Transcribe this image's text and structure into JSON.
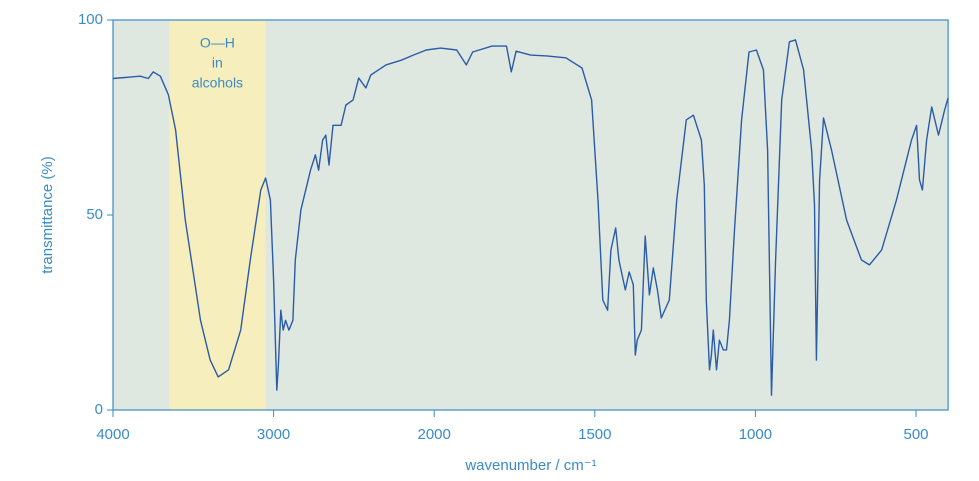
{
  "chart_data": {
    "type": "line",
    "y_label": "transmittance (%)",
    "x_label": "wavenumber / cm⁻¹",
    "xlim": [
      4000,
      400
    ],
    "ylim": [
      0,
      100
    ],
    "xticks": [
      4000,
      3000,
      2000,
      1500,
      1000,
      500
    ],
    "yticks": [
      0,
      50,
      100
    ],
    "color": "#2b5ca6",
    "background": "#dfe7e1",
    "annotation": {
      "lines": [
        "O—H",
        "in",
        "alcohols"
      ],
      "x_range": [
        3650,
        3050
      ],
      "color": "#f6eebd"
    },
    "x": [
      4000,
      3830,
      3780,
      3750,
      3705,
      3655,
      3610,
      3550,
      3455,
      3395,
      3345,
      3280,
      3205,
      3145,
      3080,
      3050,
      3020,
      3000,
      2980,
      2970,
      2955,
      2940,
      2925,
      2905,
      2880,
      2865,
      2830,
      2770,
      2740,
      2720,
      2695,
      2675,
      2655,
      2630,
      2580,
      2550,
      2505,
      2470,
      2425,
      2395,
      2300,
      2205,
      2130,
      2050,
      1980,
      1930,
      1900,
      1880,
      1820,
      1775,
      1760,
      1745,
      1700,
      1650,
      1590,
      1540,
      1510,
      1490,
      1475,
      1460,
      1450,
      1435,
      1425,
      1405,
      1393,
      1380,
      1374,
      1368,
      1355,
      1343,
      1330,
      1318,
      1305,
      1293,
      1268,
      1245,
      1215,
      1193,
      1168,
      1159,
      1153,
      1143,
      1137,
      1131,
      1121,
      1112,
      1100,
      1090,
      1081,
      1065,
      1043,
      1020,
      997,
      975,
      962,
      950,
      937,
      918,
      894,
      875,
      850,
      825,
      816,
      810,
      800,
      788,
      763,
      716,
      670,
      645,
      607,
      561,
      514,
      498,
      489,
      480,
      467,
      451,
      430,
      411,
      400
    ],
    "values": [
      85,
      85.6,
      85,
      86.7,
      85.6,
      80.8,
      71.8,
      48.7,
      23,
      12.8,
      8.5,
      10.3,
      20.5,
      38.5,
      56.4,
      59.5,
      53.8,
      33.3,
      5.1,
      11.5,
      25.6,
      20.5,
      23,
      20.5,
      23,
      38.5,
      51.3,
      61.5,
      65.4,
      61.5,
      69.2,
      70.5,
      62.8,
      73,
      73,
      78.2,
      79.5,
      85.1,
      82.6,
      85.9,
      88.5,
      89.7,
      91,
      92.3,
      92.8,
      92.3,
      88.5,
      91.8,
      93.3,
      93.3,
      86.7,
      92,
      91,
      90.8,
      90.3,
      87.7,
      79.5,
      53.8,
      28.2,
      25.6,
      41,
      46.7,
      38.5,
      30.8,
      35.4,
      32.1,
      14.1,
      17.9,
      20.5,
      44.6,
      29.5,
      36.4,
      30.8,
      23.6,
      28.2,
      53.8,
      74.4,
      75.6,
      69.2,
      57.7,
      28.2,
      10.3,
      14.1,
      20.5,
      10.3,
      17.9,
      15.4,
      15.4,
      23,
      46.2,
      74.4,
      91.8,
      92.3,
      87.2,
      66.7,
      3.8,
      38.5,
      79.5,
      94.4,
      94.9,
      87.2,
      66.7,
      52.6,
      12.8,
      59,
      74.9,
      66.7,
      48.7,
      38.5,
      37.2,
      41,
      53.8,
      69.2,
      73,
      59,
      56.4,
      69.2,
      77.7,
      70.5,
      76.9,
      80
    ]
  }
}
